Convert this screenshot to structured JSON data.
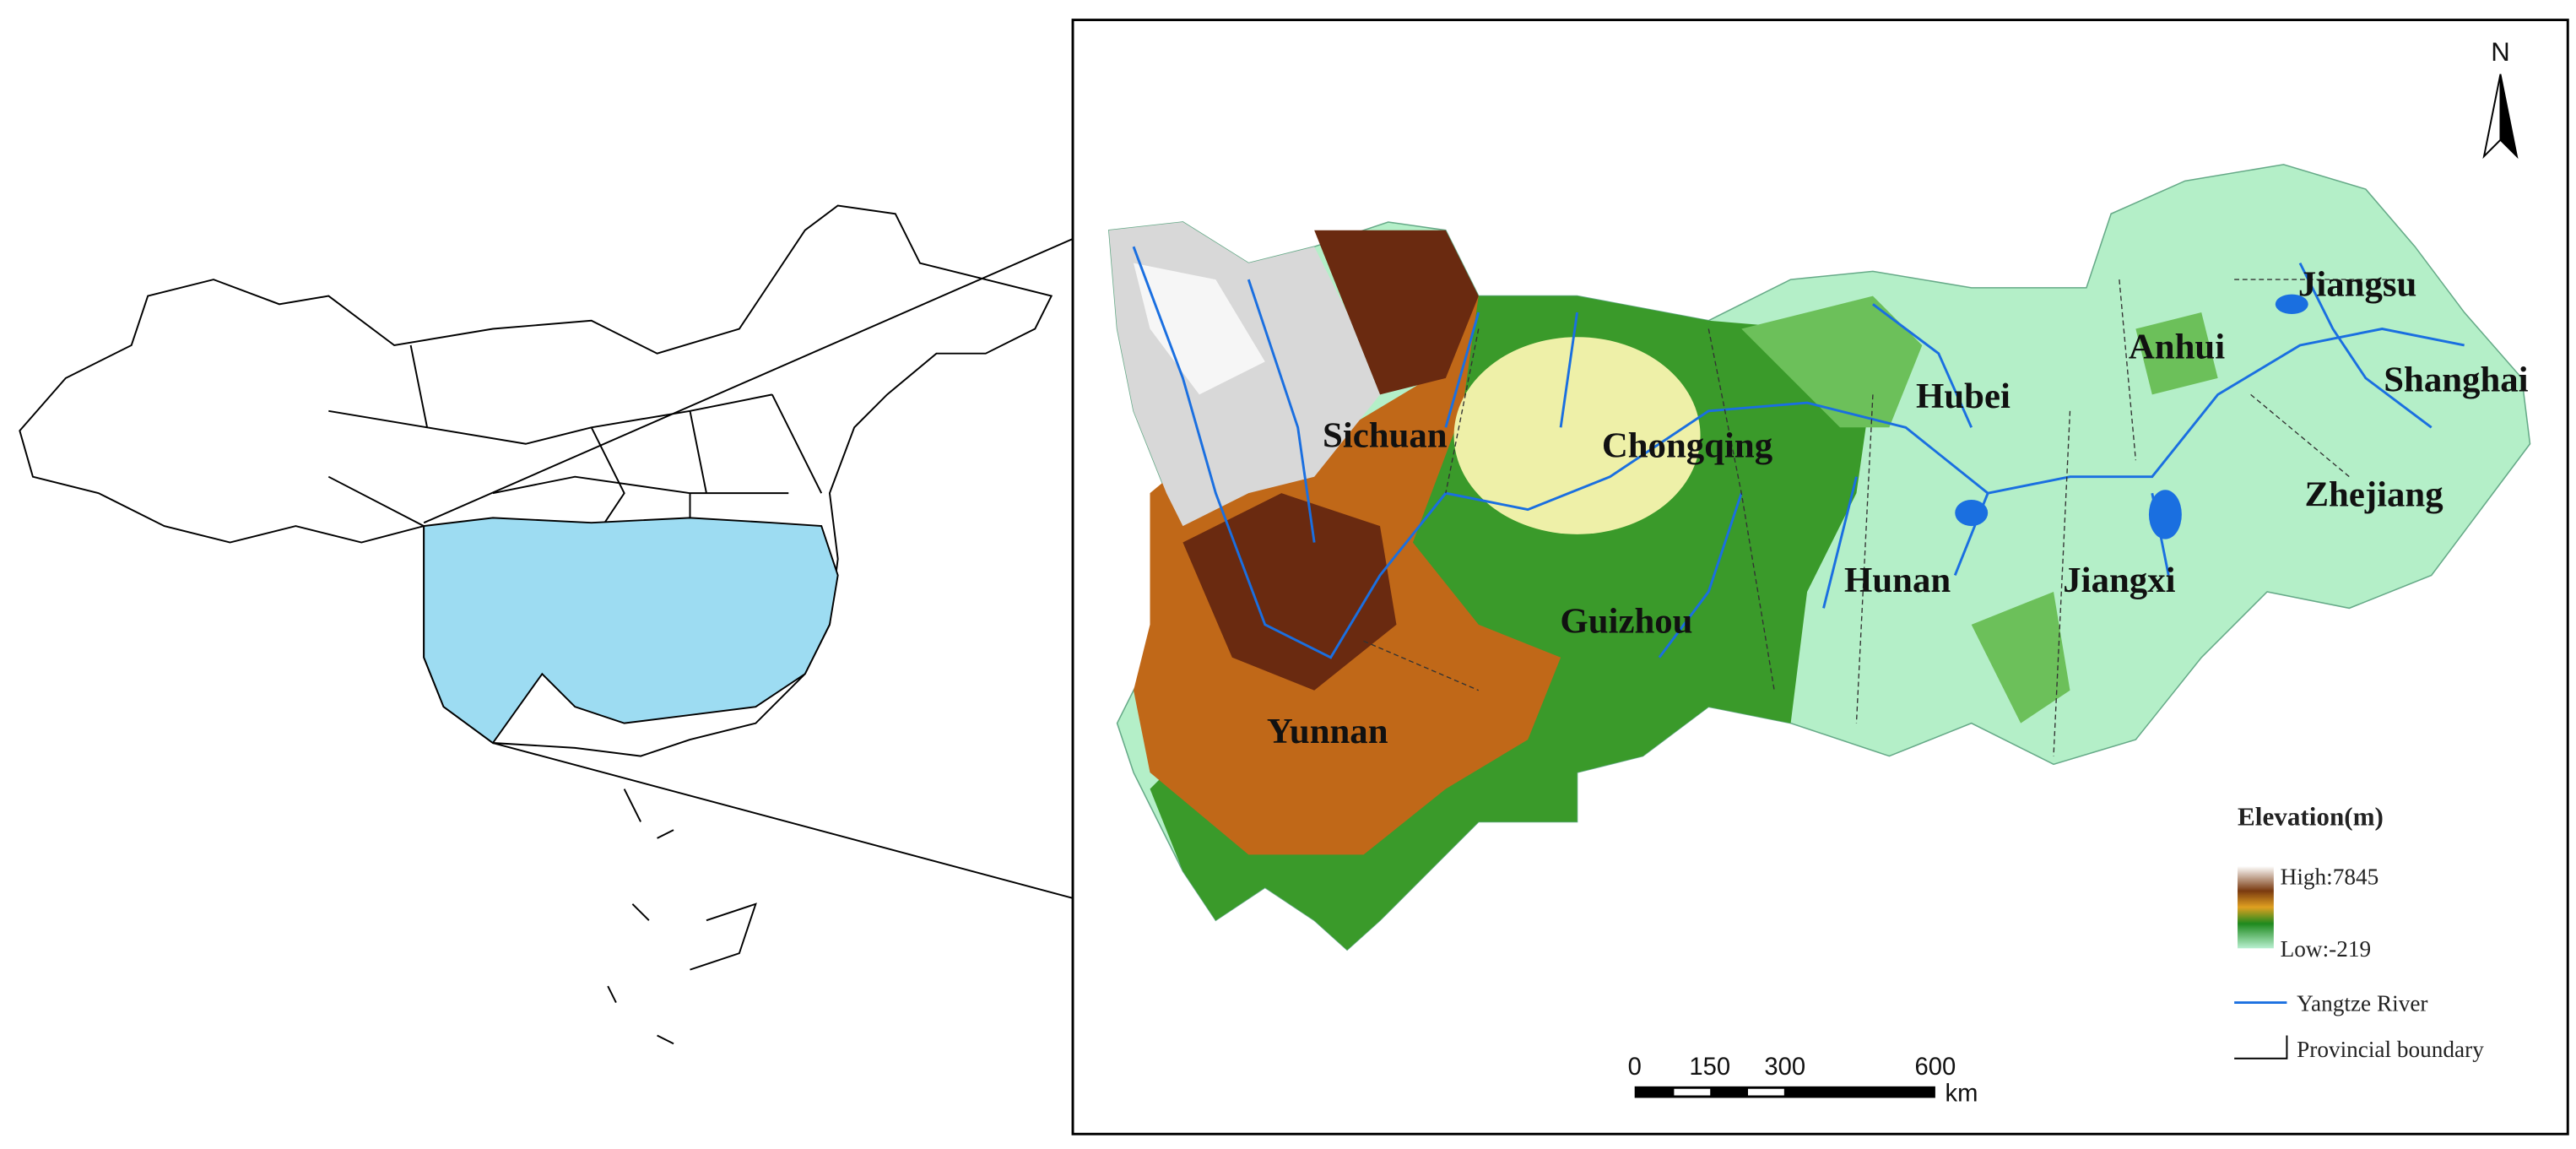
{
  "north_label": "N",
  "provinces": [
    "Sichuan",
    "Chongqing",
    "Hubei",
    "Anhui",
    "Jiangsu",
    "Shanghai",
    "Zhejiang",
    "Hunan",
    "Jiangxi",
    "Guizhou",
    "Yunnan"
  ],
  "legend": {
    "title": "Elevation(m)",
    "high": "High:7845",
    "low": "Low:-219",
    "river": "Yangtze River",
    "boundary": "Provincial boundary"
  },
  "scale_bar": {
    "ticks": [
      0,
      150,
      300,
      600
    ],
    "unit": "km"
  }
}
